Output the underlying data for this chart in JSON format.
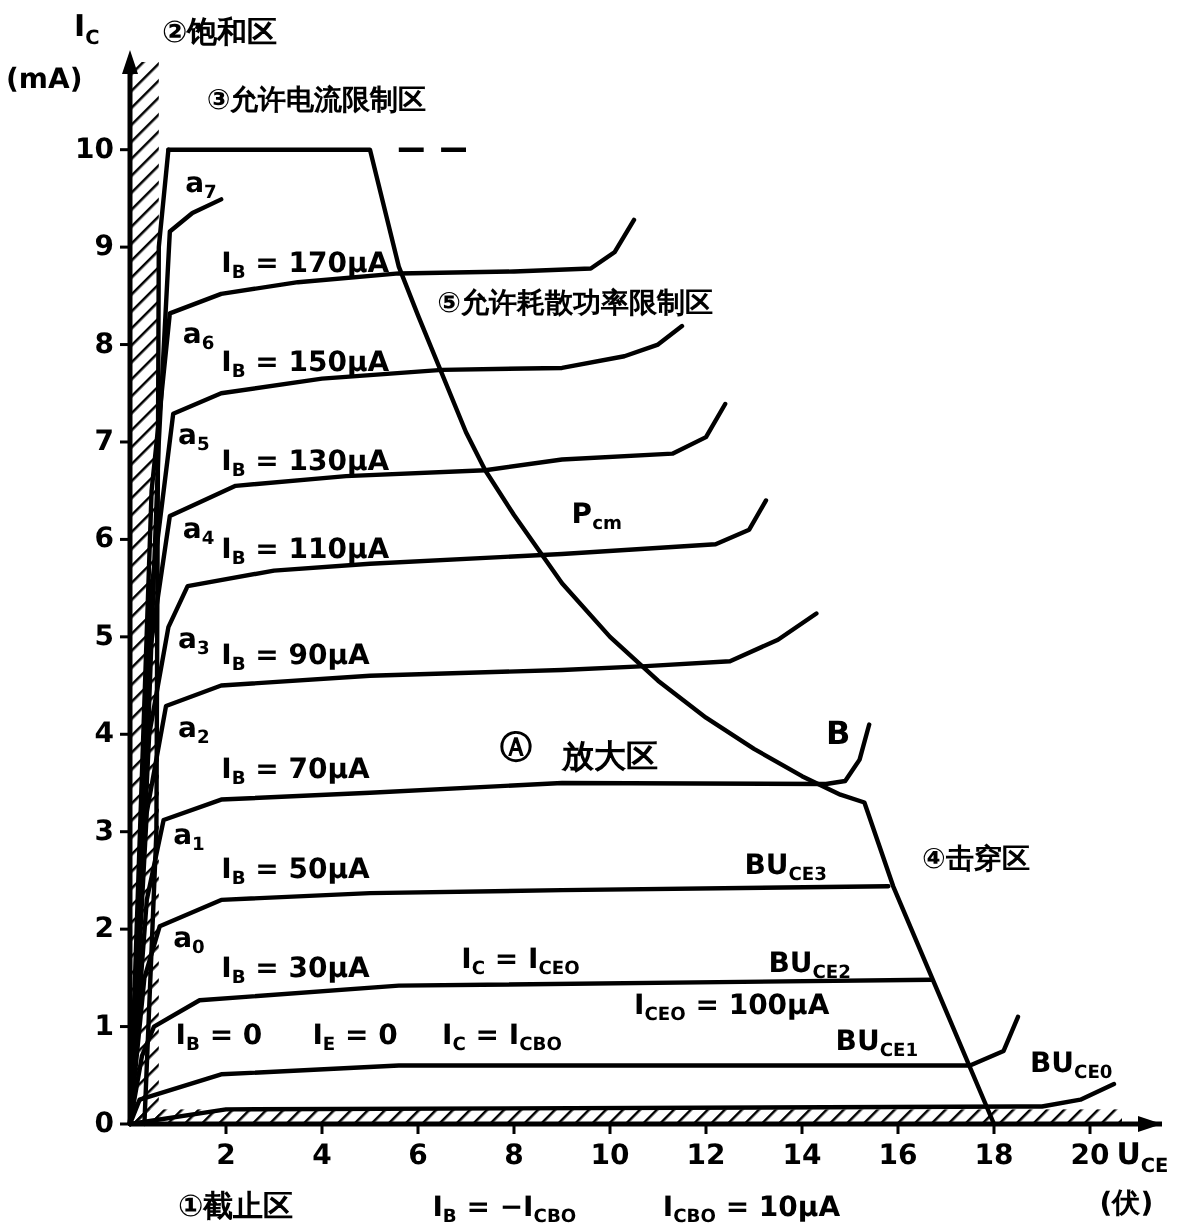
{
  "chart_data": {
    "type": "line",
    "ylabel": "I$_{C}$ (mA)",
    "xlabel": "U$_{CE}$ (伏)",
    "xlim": [
      0,
      21.5
    ],
    "ylim": [
      0,
      10.9
    ],
    "xticks": [
      2,
      4,
      6,
      8,
      10,
      12,
      14,
      16,
      18,
      20
    ],
    "yticks": [
      0,
      1,
      2,
      3,
      4,
      5,
      6,
      7,
      8,
      9,
      10
    ],
    "grid": false,
    "series": [
      {
        "color": "#000000",
        "x": [
          0,
          0.3,
          0.6,
          0.83,
          1.3,
          1.9
        ],
        "values": [
          0,
          3,
          7,
          9.16,
          9.35,
          9.49
        ]
      },
      {
        "name": "I$_{B}$ = 170μA",
        "color": "#000000",
        "x": [
          0,
          0.45,
          0.83,
          1.9,
          3.5,
          5.6,
          8,
          9.6,
          10.1,
          10.5
        ],
        "values": [
          0,
          6.5,
          8.32,
          8.52,
          8.64,
          8.73,
          8.75,
          8.78,
          8.95,
          9.28
        ]
      },
      {
        "name": "I$_{B}$ = 150μA",
        "color": "#000000",
        "x": [
          0,
          0.45,
          0.9,
          1.9,
          4,
          6.5,
          9,
          10.3,
          11,
          11.5
        ],
        "values": [
          0,
          5.5,
          7.29,
          7.5,
          7.65,
          7.74,
          7.76,
          7.88,
          8.0,
          8.19
        ]
      },
      {
        "name": "I$_{B}$ = 130μA",
        "color": "#000000",
        "x": [
          0,
          0.4,
          0.83,
          2.2,
          4.5,
          7.4,
          9,
          11.3,
          12,
          12.4
        ],
        "values": [
          0,
          4.8,
          6.24,
          6.55,
          6.65,
          6.71,
          6.82,
          6.88,
          7.05,
          7.39
        ]
      },
      {
        "name": "I$_{B}$ = 110μA",
        "color": "#000000",
        "x": [
          0,
          0.4,
          0.8,
          1.2,
          3,
          5,
          9,
          12.2,
          12.9,
          13.25
        ],
        "values": [
          0,
          4,
          5.1,
          5.52,
          5.68,
          5.75,
          5.85,
          5.95,
          6.1,
          6.4
        ]
      },
      {
        "name": "I$_{B}$ = 90μA",
        "color": "#000000",
        "x": [
          0,
          0.35,
          0.75,
          1.9,
          5,
          9,
          10.75,
          12.5,
          13.5,
          14.3
        ],
        "values": [
          0,
          3.2,
          4.29,
          4.5,
          4.6,
          4.66,
          4.7,
          4.75,
          4.97,
          5.24
        ]
      },
      {
        "name": "I$_{B}$ = 70μA",
        "color": "#000000",
        "x": [
          0,
          0.35,
          0.7,
          1.9,
          5,
          9,
          14.5,
          14.9,
          15.2,
          15.4
        ],
        "values": [
          0,
          2.3,
          3.12,
          3.33,
          3.4,
          3.5,
          3.49,
          3.52,
          3.74,
          4.1
        ]
      },
      {
        "name": "I$_{B}$ = 50μA",
        "color": "#000000",
        "x": [
          0,
          0.3,
          0.62,
          1.9,
          5,
          9,
          15.8
        ],
        "values": [
          0,
          1.5,
          2.03,
          2.3,
          2.37,
          2.4,
          2.44
        ]
      },
      {
        "name": "I$_{B}$ = 30μA",
        "color": "#000000",
        "x": [
          0,
          0.25,
          0.5,
          1.45,
          5.6,
          16.7
        ],
        "values": [
          0,
          0.7,
          1.0,
          1.27,
          1.42,
          1.48
        ]
      },
      {
        "color": "#000000",
        "x": [
          0,
          0.2,
          1.9,
          5.6,
          17.5,
          18.2,
          18.5
        ],
        "values": [
          0,
          0.25,
          0.51,
          0.6,
          0.6,
          0.75,
          1.1
        ]
      },
      {
        "color": "#000000",
        "x": [
          0,
          2,
          19,
          19.8,
          20.5
        ],
        "values": [
          0,
          0.15,
          0.18,
          0.25,
          0.41
        ]
      },
      {
        "color": "#000000",
        "line_style": "dashed",
        "x": [
          5.6,
          7.0
        ],
        "values": [
          10,
          10
        ]
      },
      {
        "color": "#000000",
        "x": [
          0.8,
          5,
          5.6,
          6,
          7,
          7.4,
          8,
          9,
          10,
          11,
          12,
          13,
          14,
          14.8,
          15.3,
          15.9,
          18
        ],
        "values": [
          10,
          10,
          8.8,
          8.3,
          7.1,
          6.71,
          6.25,
          5.55,
          5.0,
          4.55,
          4.17,
          3.85,
          3.57,
          3.38,
          3.3,
          2.44,
          0
        ]
      },
      {
        "color": "#000000",
        "x": [
          0.3,
          0.55,
          0.6,
          0.8
        ],
        "values": [
          0,
          3,
          9,
          10
        ]
      }
    ],
    "bands": [
      {
        "axis": "x",
        "from": 0,
        "to": 0.6,
        "label": "②饱和区",
        "color": "#000000"
      },
      {
        "axis": "y",
        "from": 0,
        "to": 0.15,
        "label": "①截止区",
        "color": "#000000"
      }
    ],
    "annotations": [
      "③允许电流限制区",
      "⑤允许耗散功率限制区",
      "P$_{cm}$",
      "Ⓐ",
      "放大区",
      "B",
      "④击穿区",
      "BU$_{CE3}$",
      "BU$_{CE2}$",
      "I$_{CEO}$ = 100μA",
      "BU$_{CE1}$",
      "BU$_{CE0}$",
      "I$_{C}$ = I$_{CEO}$",
      "I$_{C}$ = I$_{CBO}$",
      "I$_{B}$ = 0",
      "I$_{E}$ = 0",
      "a$_{7}$",
      "a$_{6}$",
      "a$_{5}$",
      "a$_{4}$",
      "a$_{3}$",
      "a$_{2}$",
      "a$_{1}$",
      "a$_{0}$",
      "I$_{B}$ = −I$_{CBO}$",
      "I$_{CBO}$ = 10μA"
    ]
  }
}
